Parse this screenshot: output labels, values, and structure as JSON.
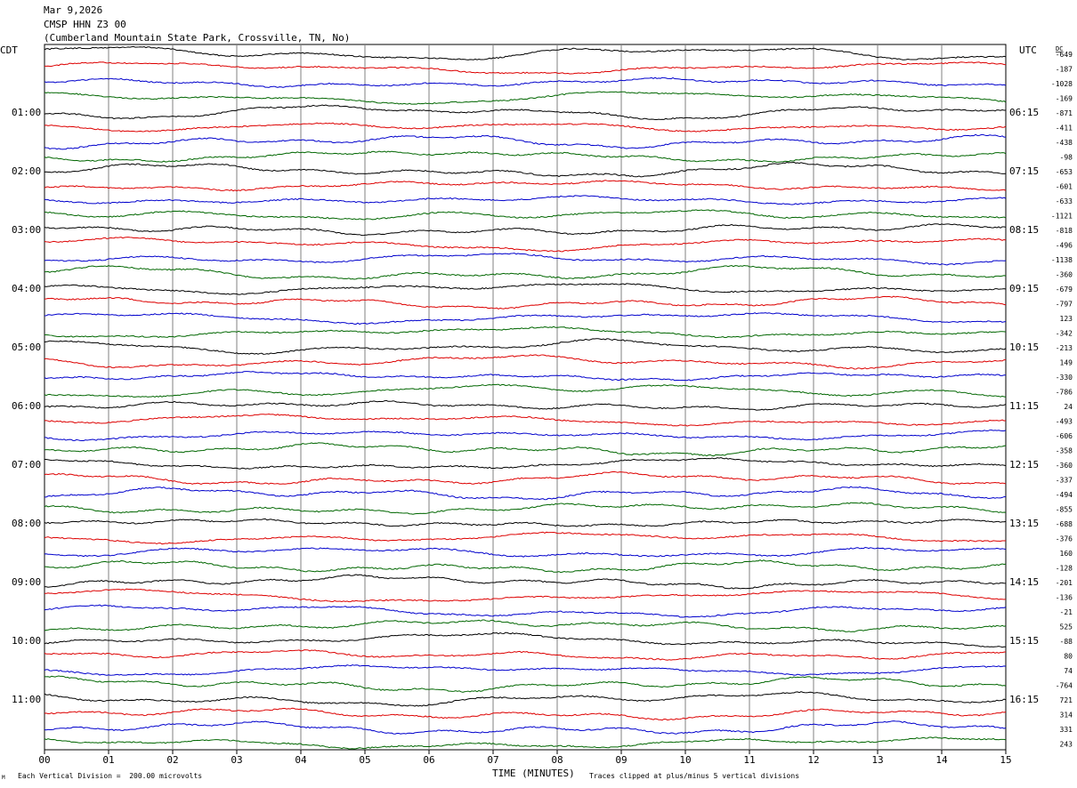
{
  "header": {
    "date": "Mar 9,2026",
    "station": "CMSP HHN Z3 00",
    "location": "(Cumberland Mountain State Park, Crossville, TN, No)"
  },
  "labels": {
    "left_tz": "CDT",
    "right_tz": "UTC",
    "dc_header": "DC"
  },
  "footer": {
    "scale_note": "Each Vertical Division =  200.00 microvolts",
    "mark": "M",
    "x_title": "TIME (MINUTES)",
    "clip_note": "Traces clipped at plus/minus 5 vertical divisions"
  },
  "colors": {
    "black": "#000000",
    "red": "#dd0000",
    "blue": "#0000cc",
    "green": "#006600",
    "grid": "#808080"
  },
  "chart_data": {
    "type": "line",
    "description_kind": "helicorder",
    "x_ticks": [
      "00",
      "01",
      "02",
      "03",
      "04",
      "05",
      "06",
      "07",
      "08",
      "09",
      "10",
      "11",
      "12",
      "13",
      "14",
      "15"
    ],
    "xlim": [
      0,
      15
    ],
    "trace_color_cycle": [
      "black",
      "red",
      "blue",
      "green"
    ],
    "left_hour_labels": [
      "01:00",
      "02:00",
      "03:00",
      "04:00",
      "05:00",
      "06:00",
      "07:00",
      "08:00",
      "09:00",
      "10:00",
      "11:00"
    ],
    "right_hour_labels": [
      "06:15",
      "07:15",
      "08:15",
      "09:15",
      "10:15",
      "11:15",
      "12:15",
      "13:15",
      "14:15",
      "15:15",
      "16:15"
    ],
    "dc_offsets": [
      "-649",
      "-187",
      "-1028",
      "-169",
      "-871",
      "-411",
      "-438",
      "-98",
      "-653",
      "-601",
      "-633",
      "-1121",
      "-818",
      "-496",
      "-1138",
      "-360",
      "-679",
      "-797",
      "123",
      "-342",
      "-213",
      "149",
      "-330",
      "-786",
      "24",
      "-493",
      "-606",
      "-358",
      "-360",
      "-337",
      "-494",
      "-855",
      "-688",
      "-376",
      "160",
      "-128",
      "-201",
      "-136",
      "-21",
      "525",
      "-88",
      "80",
      "74",
      "-764",
      "721",
      "314",
      "331",
      "243"
    ]
  }
}
